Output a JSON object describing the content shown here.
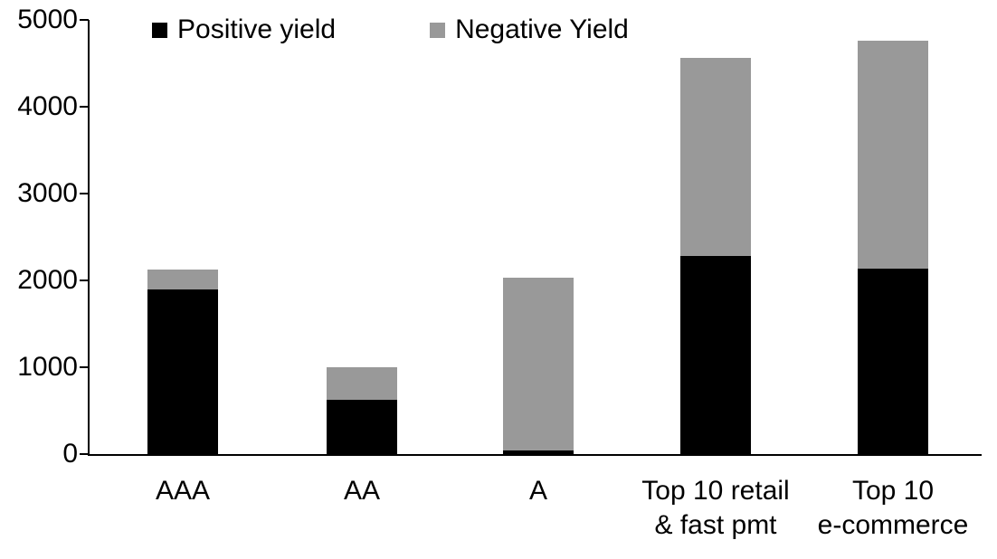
{
  "chart_data": {
    "type": "bar",
    "stacked": true,
    "title": "",
    "xlabel": "",
    "ylabel": "",
    "categories": [
      "AAA",
      "AA",
      "A",
      "Top 10 retail\n& fast pmt",
      "Top 10\ne-commerce"
    ],
    "series": [
      {
        "name": "Positive yield",
        "color": "#000000",
        "values": [
          1900,
          620,
          45,
          2280,
          2140
        ]
      },
      {
        "name": "Negative Yield",
        "color": "#999999",
        "values": [
          230,
          380,
          1985,
          2280,
          2620
        ]
      }
    ],
    "totals": [
      2130,
      1000,
      2030,
      4560,
      4760
    ],
    "ylim": [
      0,
      5000
    ],
    "yticks": [
      "0",
      "1000",
      "2000",
      "3000",
      "4000",
      "5000"
    ],
    "legend_position": "top",
    "grid": false,
    "axis_color": "#000000",
    "background_color": "#ffffff"
  }
}
